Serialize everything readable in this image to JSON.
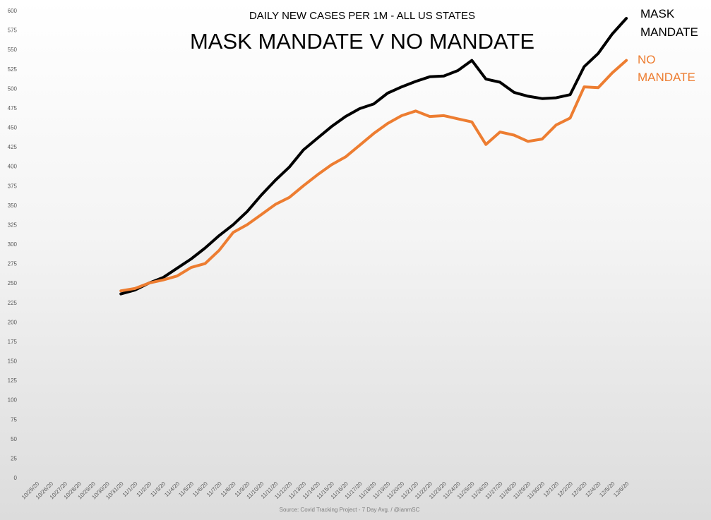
{
  "chart_data": {
    "type": "line",
    "subtitle": "DAILY NEW CASES PER 1M - ALL US STATES",
    "title": "MASK MANDATE V NO MANDATE",
    "source": "Source: Covid Tracking Project - 7 Day Avg. / @ianmSC",
    "ylim": [
      0,
      600
    ],
    "yticks": [
      0,
      25,
      50,
      75,
      100,
      125,
      150,
      175,
      200,
      225,
      250,
      275,
      300,
      325,
      350,
      375,
      400,
      425,
      450,
      475,
      500,
      525,
      550,
      575,
      600
    ],
    "grid": false,
    "categories": [
      "10/25/20",
      "10/26/20",
      "10/27/20",
      "10/28/20",
      "10/29/20",
      "10/30/20",
      "10/31/20",
      "11/1/20",
      "11/2/20",
      "11/3/20",
      "11/4/20",
      "11/5/20",
      "11/6/20",
      "11/7/20",
      "11/8/20",
      "11/9/20",
      "11/10/20",
      "11/11/20",
      "11/12/20",
      "11/13/20",
      "11/14/20",
      "11/15/20",
      "11/16/20",
      "11/17/20",
      "11/18/20",
      "11/19/20",
      "11/20/20",
      "11/21/20",
      "11/22/20",
      "11/23/20",
      "11/24/20",
      "11/25/20",
      "11/26/20",
      "11/27/20",
      "11/28/20",
      "11/29/20",
      "11/30/20",
      "12/1/20",
      "12/2/20",
      "12/3/20",
      "12/4/20",
      "12/5/20",
      "12/6/20"
    ],
    "series": [
      {
        "name_lines": [
          "MASK",
          "MANDATE"
        ],
        "color": "#000000",
        "values": [
          null,
          null,
          null,
          null,
          null,
          null,
          236,
          241,
          250,
          257,
          269,
          281,
          295,
          311,
          325,
          342,
          363,
          382,
          399,
          421,
          436,
          451,
          464,
          474,
          480,
          494,
          502,
          509,
          515,
          516,
          523,
          536,
          512,
          508,
          495,
          490,
          487,
          488,
          492,
          528,
          545,
          570,
          590
        ]
      },
      {
        "name_lines": [
          "NO",
          "MANDATE"
        ],
        "color": "#ed7d31",
        "values": [
          null,
          null,
          null,
          null,
          null,
          null,
          240,
          243,
          250,
          254,
          259,
          270,
          275,
          292,
          315,
          325,
          338,
          351,
          360,
          375,
          389,
          402,
          412,
          427,
          442,
          455,
          465,
          471,
          464,
          465,
          461,
          457,
          428,
          444,
          440,
          432,
          435,
          453,
          462,
          502,
          501,
          520,
          536
        ]
      }
    ]
  }
}
